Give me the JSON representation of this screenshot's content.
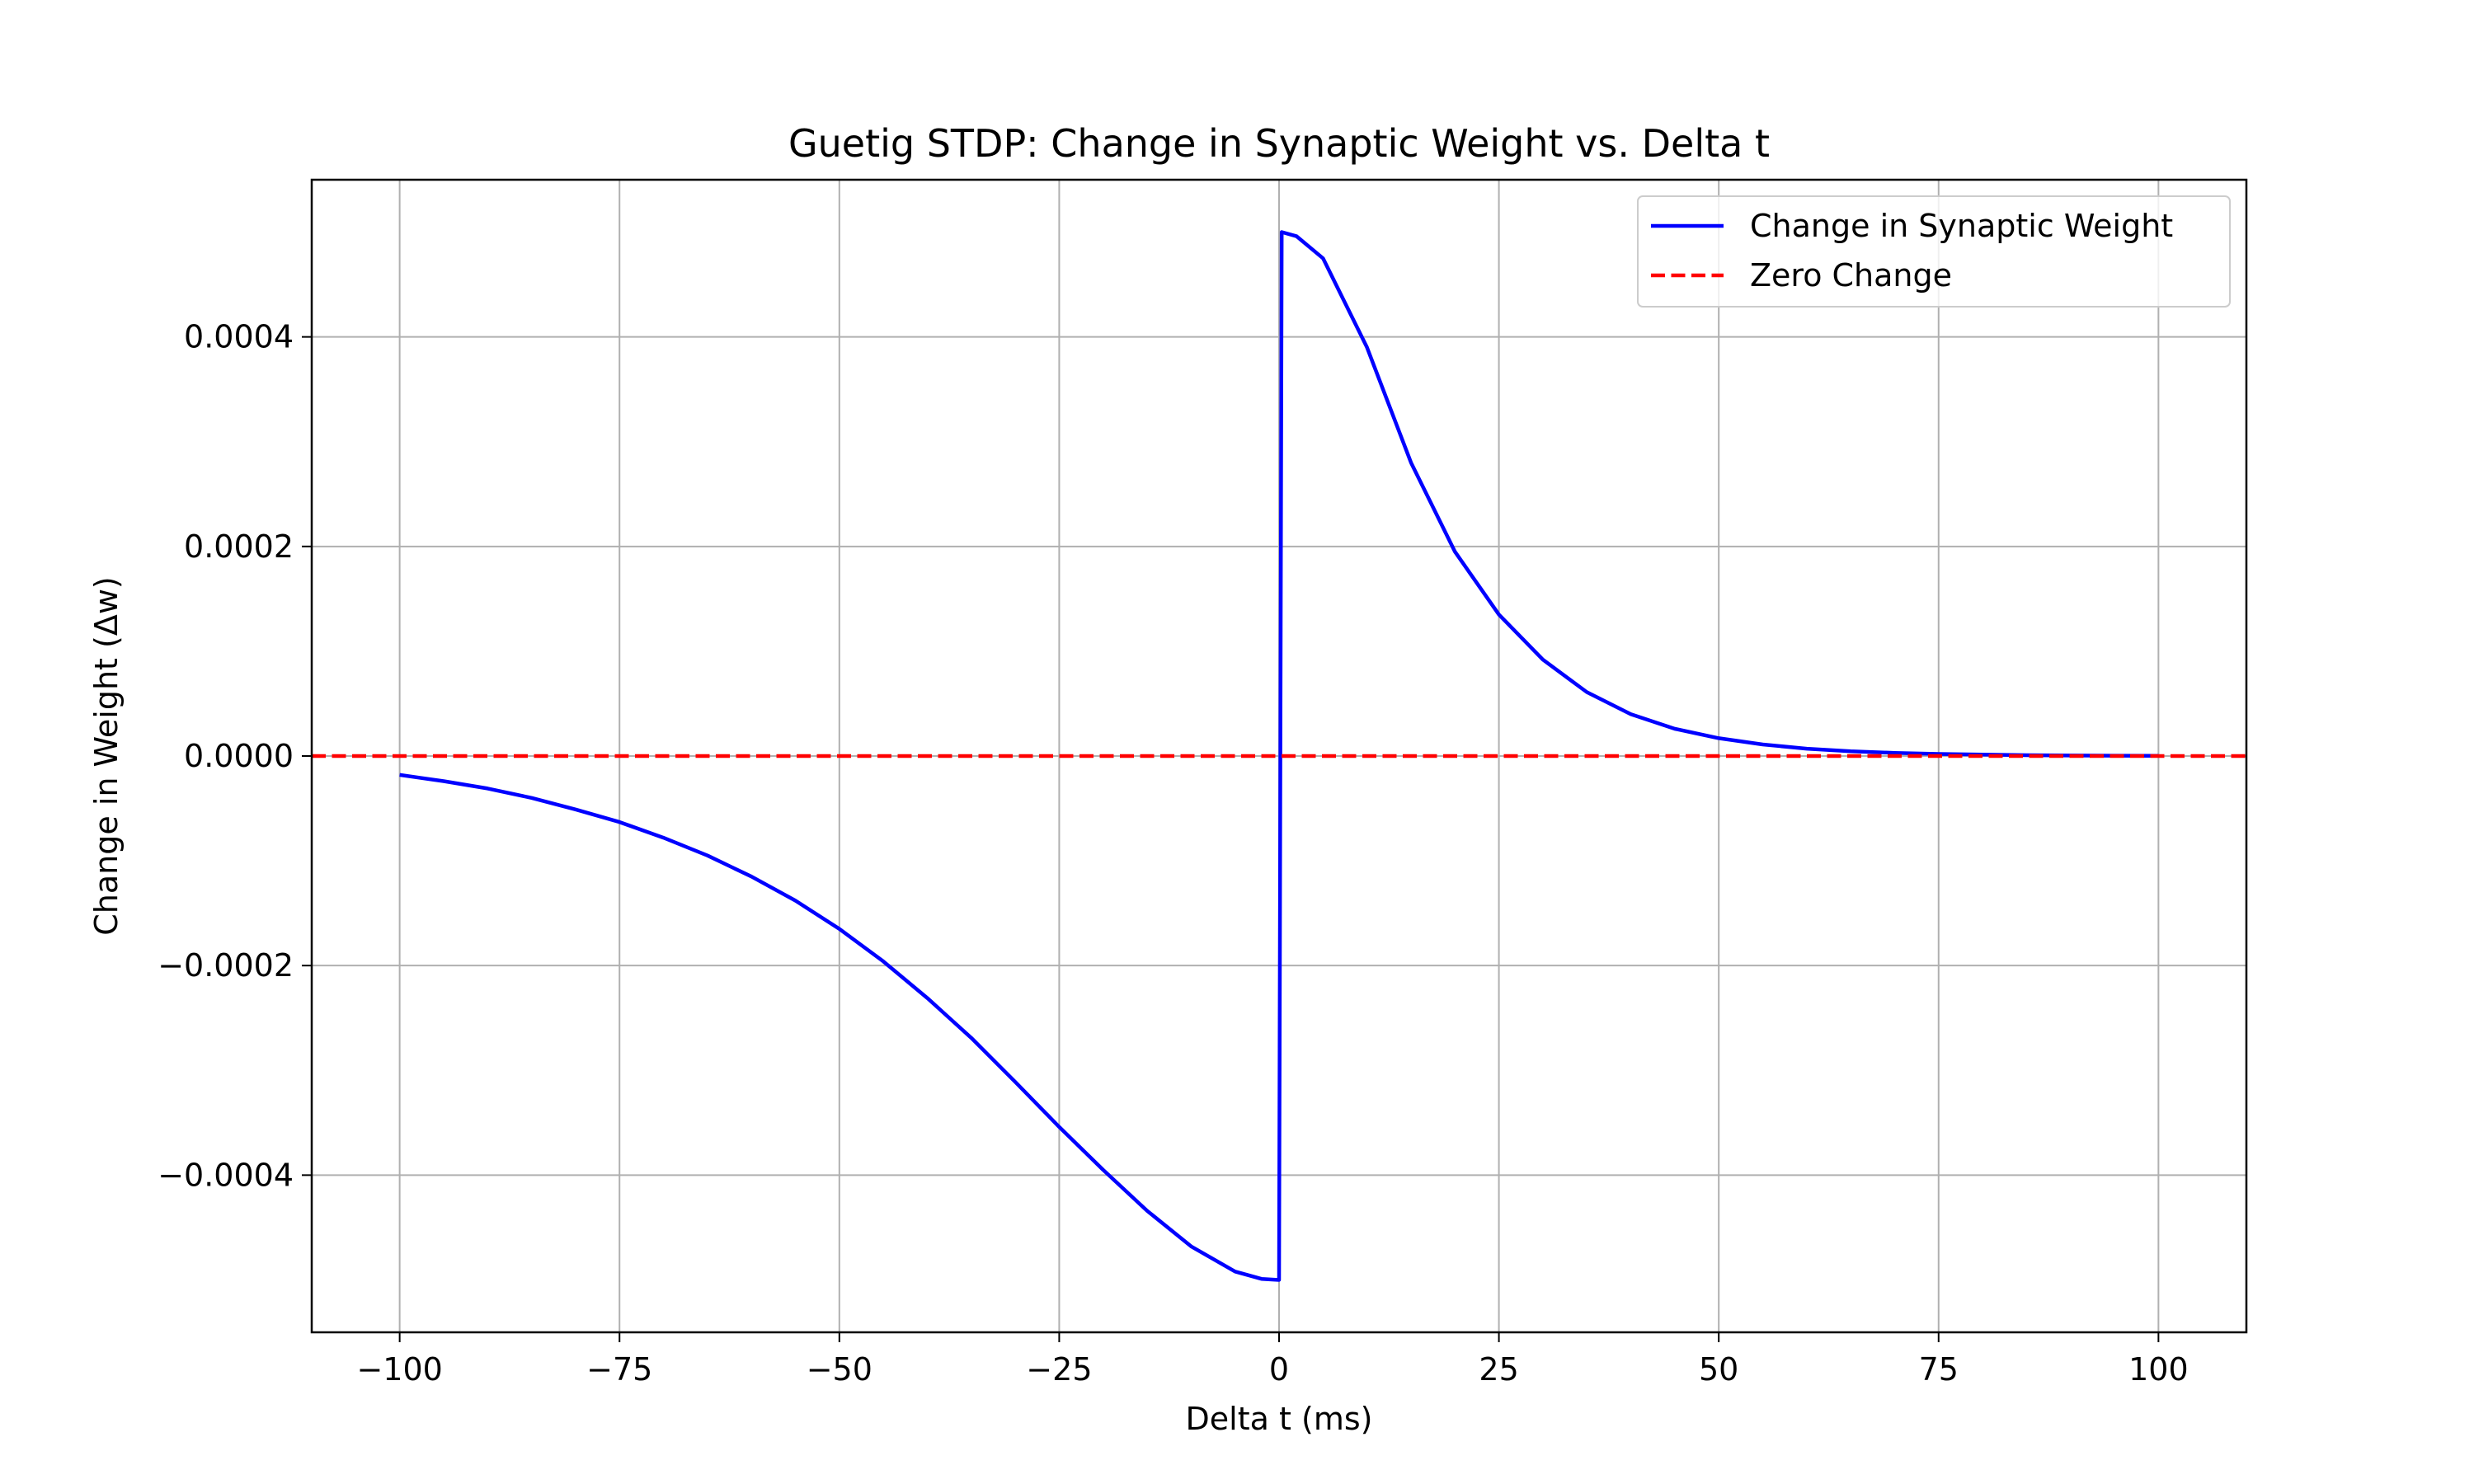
{
  "chart_data": {
    "type": "line",
    "title": "Guetig STDP: Change in Synaptic Weight vs. Delta t",
    "xlabel": "Delta t (ms)",
    "ylabel": "Change in Weight (Δw)",
    "xlim": [
      -110,
      110
    ],
    "ylim": [
      -0.00055,
      0.00055
    ],
    "xticks": [
      -100,
      -75,
      -50,
      -25,
      0,
      25,
      50,
      75,
      100
    ],
    "xtick_labels": [
      "−100",
      "−75",
      "−50",
      "−25",
      "0",
      "25",
      "50",
      "75",
      "100"
    ],
    "yticks": [
      -0.0004,
      -0.0002,
      0.0,
      0.0002,
      0.0004
    ],
    "ytick_labels": [
      "−0.0004",
      "−0.0002",
      "0.0000",
      "0.0002",
      "0.0004"
    ],
    "grid": true,
    "legend_position": "top-right",
    "series": [
      {
        "name": "Change in Synaptic Weight",
        "color": "#0000ff",
        "style": "solid",
        "x": [
          -100,
          -95,
          -90,
          -85,
          -80,
          -75,
          -70,
          -65,
          -60,
          -55,
          -50,
          -45,
          -40,
          -35,
          -30,
          -25,
          -20,
          -15,
          -10,
          -5,
          -2,
          0,
          0.3,
          2,
          5,
          10,
          15,
          20,
          25,
          30,
          35,
          40,
          45,
          50,
          55,
          60,
          65,
          70,
          75,
          80,
          85,
          90,
          95,
          100
        ],
        "y": [
          -1.8e-05,
          -2.4e-05,
          -3.1e-05,
          -4e-05,
          -5.1e-05,
          -6.3e-05,
          -7.8e-05,
          -9.5e-05,
          -0.000115,
          -0.000138,
          -0.000165,
          -0.000196,
          -0.000231,
          -0.000269,
          -0.000311,
          -0.000354,
          -0.000395,
          -0.000434,
          -0.000468,
          -0.000492,
          -0.000499,
          -0.0005,
          0.0005,
          0.000496,
          0.000475,
          0.00039,
          0.00028,
          0.000195,
          0.000135,
          9.2e-05,
          6.1e-05,
          4e-05,
          2.6e-05,
          1.7e-05,
          1.1e-05,
          7e-06,
          4.5e-06,
          3e-06,
          2e-06,
          1.3e-06,
          8e-07,
          5e-07,
          3e-07,
          2e-07
        ]
      },
      {
        "name": "Zero Change",
        "color": "#ff0000",
        "style": "dashed",
        "x": [
          -110,
          110
        ],
        "y": [
          0,
          0
        ]
      }
    ]
  }
}
